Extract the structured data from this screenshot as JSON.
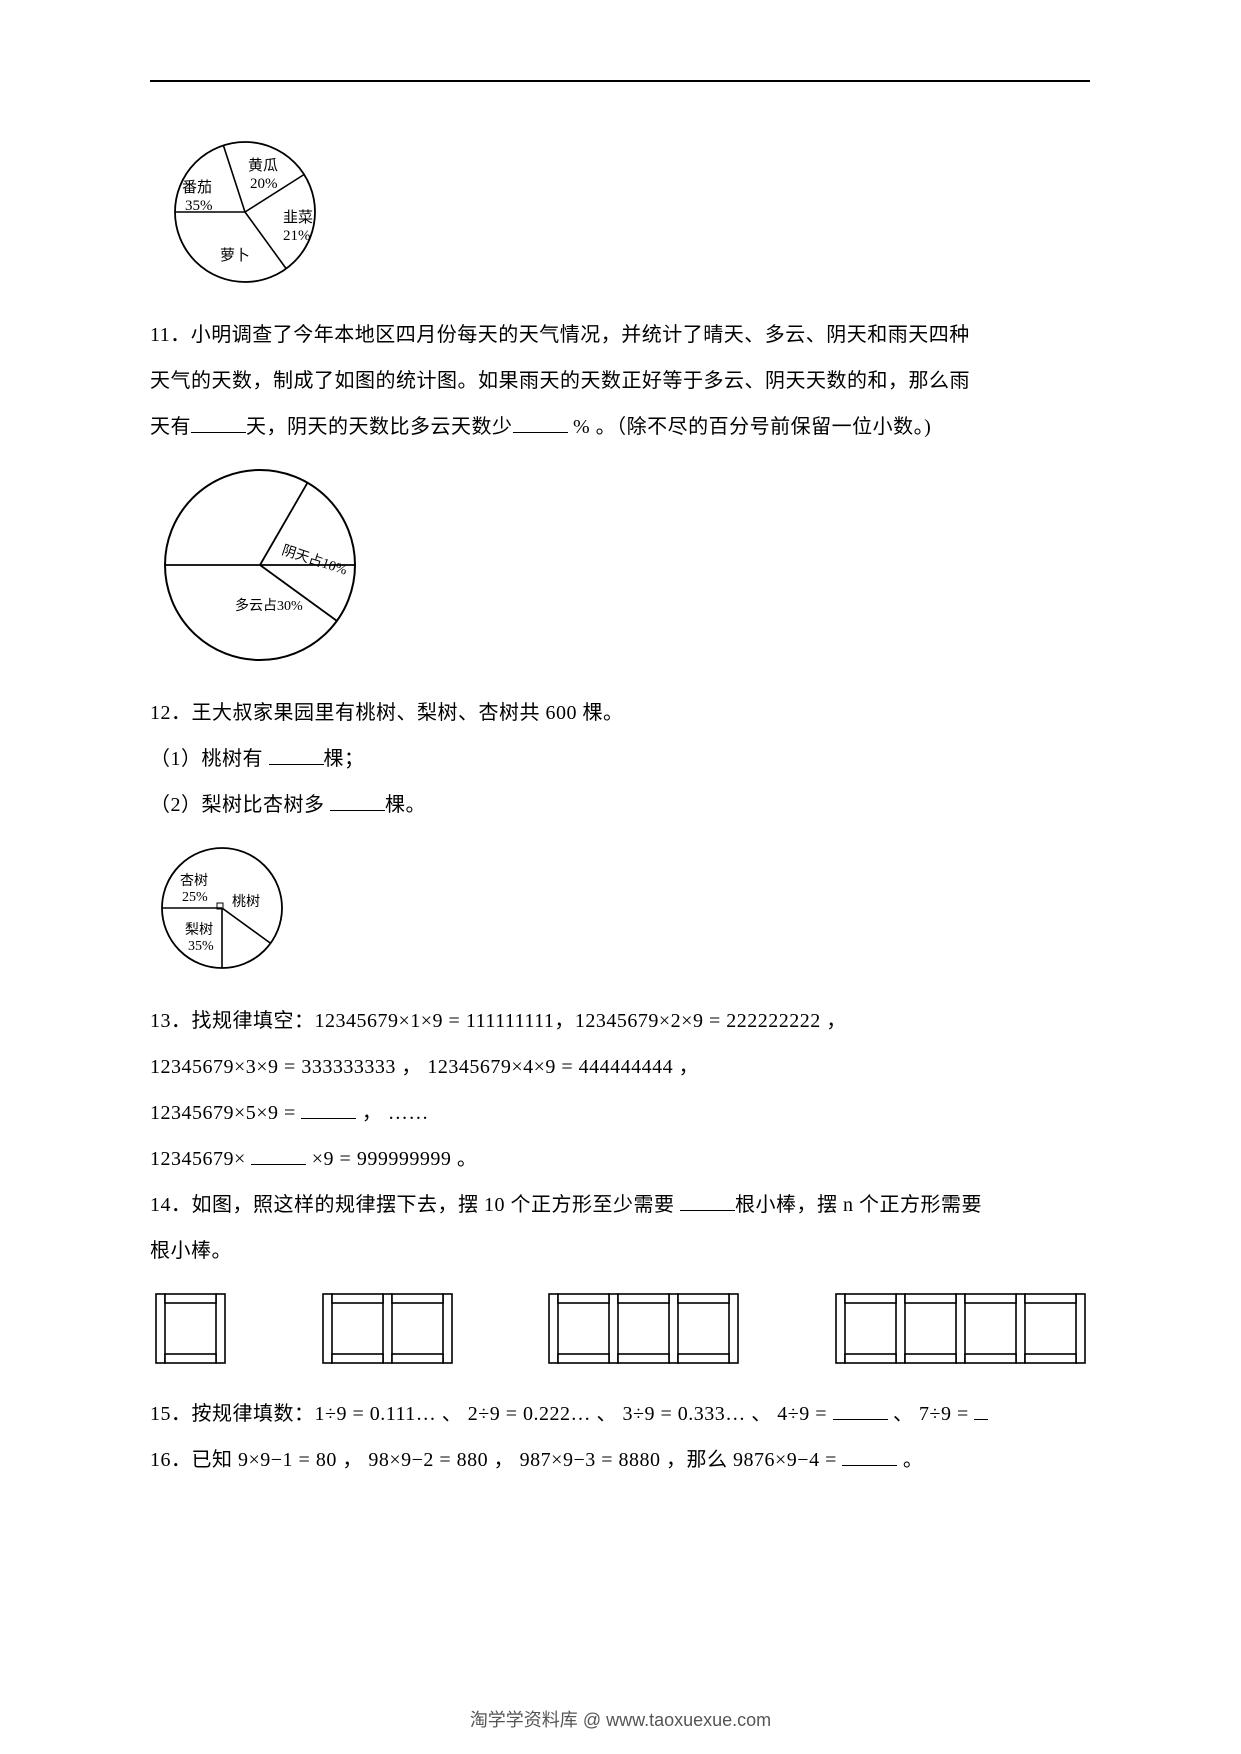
{
  "chart1": {
    "type": "pie",
    "slices": [
      {
        "label": "黄瓜",
        "value": "20%",
        "start": 270,
        "end": 342
      },
      {
        "label": "韭菜",
        "value": "21%",
        "start": 342,
        "end": 57.6
      },
      {
        "label": "萝卜",
        "value": "",
        "start": 57.6,
        "end": 144
      },
      {
        "label": "番茄",
        "value": "35%",
        "start": 144,
        "end": 270
      }
    ],
    "radius": 70,
    "stroke": "#000000",
    "background": "#ffffff",
    "font_size": 15
  },
  "q11": {
    "text_a": "11．小明调查了今年本地区四月份每天的天气情况，并统计了晴天、多云、阴天和雨天四种",
    "text_b": "天气的天数，制成了如图的统计图。如果雨天的天数正好等于多云、阴天天数的和，那么雨",
    "text_c_pre": "天有",
    "text_c_mid": "天，阴天的天数比多云天数少",
    "text_c_post": " % 。（除不尽的百分号前保留一位小数。)"
  },
  "chart2": {
    "type": "pie",
    "radius": 95,
    "labels": {
      "yin": "阴天占10%",
      "duo": "多云占30%"
    },
    "stroke": "#000000",
    "font_size": 14
  },
  "q12": {
    "text_a": "12．王大叔家果园里有桃树、梨树、杏树共 600 棵。",
    "sub1_pre": "（1）桃树有 ",
    "sub1_post": "棵；",
    "sub2_pre": "（2）梨树比杏树多 ",
    "sub2_post": "棵。"
  },
  "chart3": {
    "type": "pie",
    "radius": 60,
    "labels": {
      "xing": "杏树",
      "xing_v": "25%",
      "tao": "桃树",
      "li": "梨树",
      "li_v": "35%"
    },
    "stroke": "#000000",
    "font_size": 14
  },
  "q13": {
    "line1": "13．找规律填空：12345679×1×9 = 111111111，12345679×2×9 = 222222222 ，",
    "line2": "12345679×3×9 = 333333333 ， 12345679×4×9 = 444444444 ，",
    "line3_pre": "12345679×5×9 = ",
    "line3_post": " ， ……",
    "line4_pre": "12345679× ",
    "line4_post": " ×9 = 999999999 。"
  },
  "q14": {
    "line1_pre": "14．如图，照这样的规律摆下去，摆 10 个正方形至少需要 ",
    "line1_mid": "根小棒，摆 n 个正方形需要",
    "line2": "根小棒。"
  },
  "squares": {
    "type": "infographic",
    "stick_color": "#000000",
    "fill": "#ffffff",
    "unit": 60,
    "stick_w": 9,
    "groups": [
      1,
      2,
      3,
      4
    ]
  },
  "q15": {
    "pre": "15．按规律填数：1÷9 = 0.111… 、 2÷9 = 0.222… 、 3÷9 = 0.333… 、 4÷9 = ",
    "mid": " 、 7÷9 = "
  },
  "q16": {
    "pre": "16．已知 9×9−1 = 80 ， 98×9−2 = 880 ， 987×9−3 = 8880 ，那么 9876×9−4 = ",
    "post": " 。"
  },
  "footer": "淘学学资料库 @ www.taoxuexue.com"
}
